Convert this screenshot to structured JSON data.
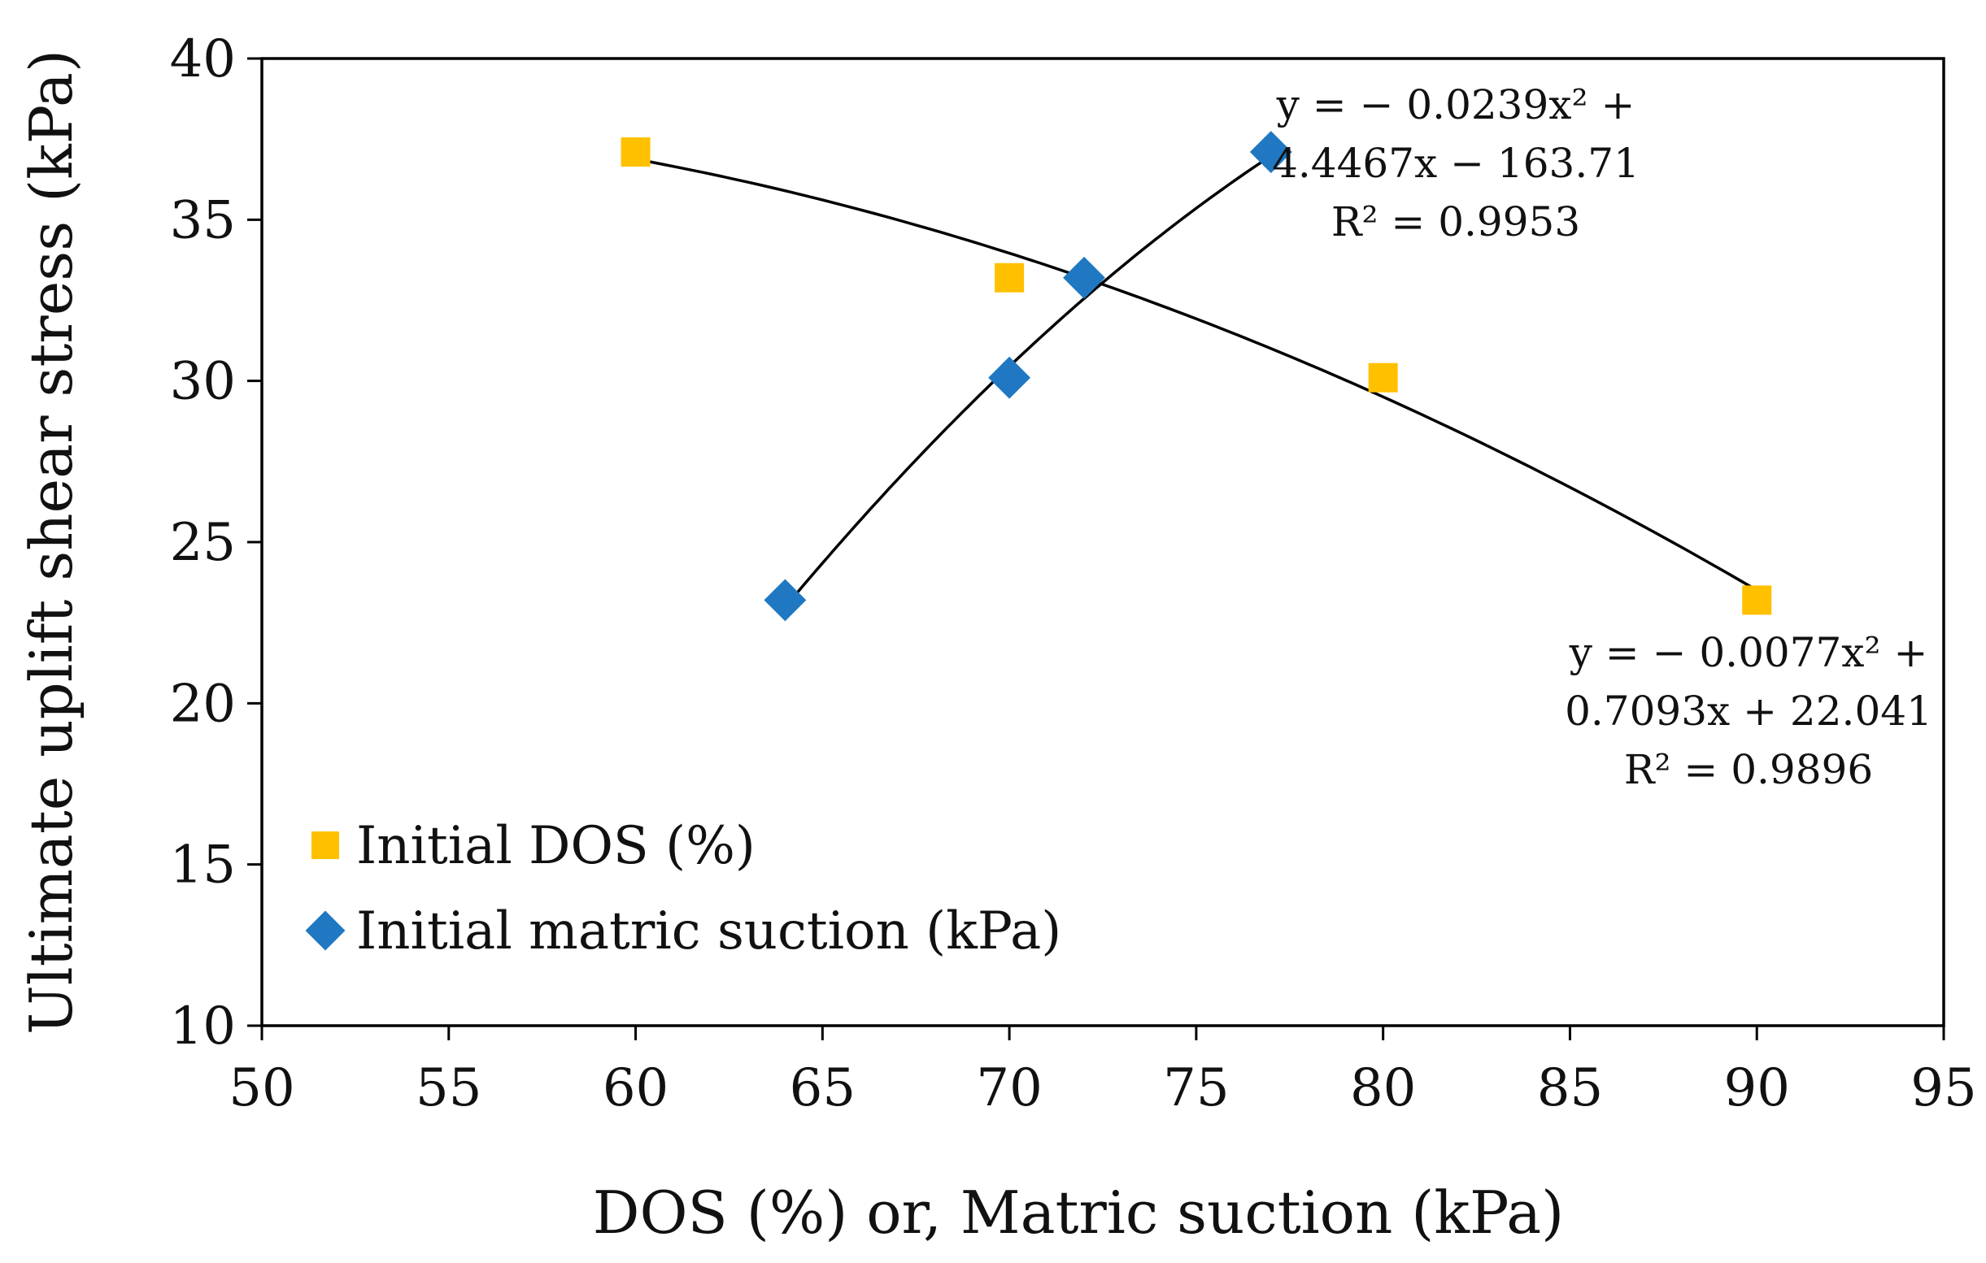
{
  "chart_data": {
    "type": "scatter",
    "title": "",
    "xlabel": "DOS (%) or, Matric suction (kPa)",
    "ylabel": "Ultimate uplift shear stress (kPa)",
    "xlim": [
      50,
      95
    ],
    "ylim": [
      10,
      40
    ],
    "xticks": [
      50,
      55,
      60,
      65,
      70,
      75,
      80,
      85,
      90,
      95
    ],
    "yticks": [
      10,
      15,
      20,
      25,
      30,
      35,
      40
    ],
    "grid": false,
    "legend_position": "bottom-left",
    "series": [
      {
        "name": "Initial DOS (%)",
        "marker": "square",
        "color": "#FFC000",
        "x": [
          60,
          70,
          80,
          90
        ],
        "y": [
          37.1,
          33.2,
          30.1,
          23.2
        ],
        "trendline": {
          "type": "polynomial",
          "order": 2,
          "coefficients": [
            -0.0077,
            0.7093,
            22.041
          ],
          "x_range": [
            60,
            90
          ],
          "equation_lines": [
            "y = − 0.0077x² +",
            "0.7093x + 22.041",
            "R² = 0.9896"
          ]
        }
      },
      {
        "name": "Initial matric suction (kPa)",
        "marker": "diamond",
        "color": "#1F78C1",
        "x": [
          64,
          70,
          72,
          77
        ],
        "y": [
          23.2,
          30.1,
          33.2,
          37.1
        ],
        "trendline": {
          "type": "polynomial",
          "order": 2,
          "coefficients": [
            -0.0239,
            4.4467,
            -163.71
          ],
          "x_range": [
            64,
            77
          ],
          "equation_lines": [
            "y = − 0.0239x² +",
            "4.4467x − 163.71",
            "R² = 0.9953"
          ]
        }
      }
    ]
  }
}
